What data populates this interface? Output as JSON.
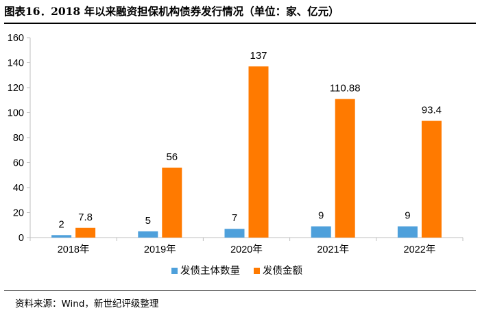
{
  "page": {
    "title": "图表16．2018 年以来融资担保机构债券发行情况（单位：家、亿元）",
    "source": "资料来源：Wind，新世纪评级整理"
  },
  "chart_data": {
    "type": "bar",
    "title": "图表16．2018 年以来融资担保机构债券发行情况（单位：家、亿元）",
    "xlabel": "",
    "ylabel": "",
    "ylim": [
      0,
      160
    ],
    "yticks": [
      0,
      20,
      40,
      60,
      80,
      100,
      120,
      140,
      160
    ],
    "ytick_labels": [
      "0",
      "20",
      "40",
      "60",
      "80",
      "100",
      "120",
      "140",
      "160"
    ],
    "grid": false,
    "legend_position": "bottom-center",
    "categories": [
      "2018年",
      "2019年",
      "2020年",
      "2021年",
      "2022年"
    ],
    "series": [
      {
        "name": "发债主体数量",
        "color": "#4EA0DB",
        "values": [
          2,
          5,
          7,
          9,
          9
        ],
        "labels": [
          "2",
          "5",
          "7",
          "9",
          "9"
        ]
      },
      {
        "name": "发债金额",
        "color": "#FF7A00",
        "values": [
          7.8,
          56,
          137,
          110.88,
          93.4
        ],
        "labels": [
          "7.8",
          "56",
          "137",
          "110.88",
          "93.4"
        ]
      }
    ]
  }
}
